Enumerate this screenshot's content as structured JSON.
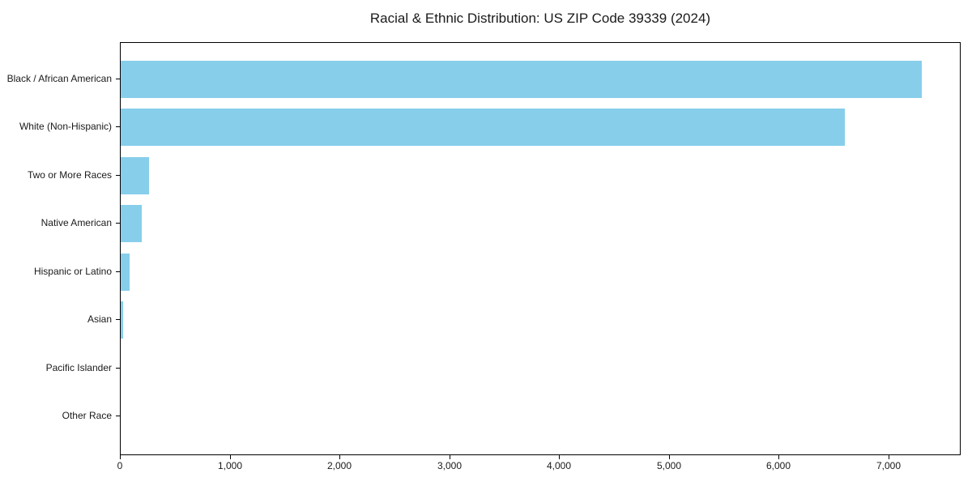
{
  "page": {
    "background_color": "#ffffff"
  },
  "chart_data": {
    "type": "bar",
    "orientation": "horizontal",
    "title": "Racial & Ethnic Distribution: US ZIP Code 39339 (2024)",
    "categories": [
      "Black / African American",
      "White (Non-Hispanic)",
      "Two or More Races",
      "Native American",
      "Hispanic or Latino",
      "Asian",
      "Pacific Islander",
      "Other Race"
    ],
    "values": [
      7300,
      6600,
      260,
      190,
      80,
      20,
      0,
      0
    ],
    "xlabel": "",
    "ylabel": "",
    "xlim": [
      0,
      7660
    ],
    "xticks": [
      0,
      1000,
      2000,
      3000,
      4000,
      5000,
      6000,
      7000
    ],
    "xtick_labels": [
      "0",
      "1,000",
      "2,000",
      "3,000",
      "4,000",
      "5,000",
      "6,000",
      "7,000"
    ],
    "bar_color": "#87CEEB",
    "axis_color": "#000000",
    "text_color": "#1a1a1a",
    "grid": false,
    "legend": "none"
  }
}
